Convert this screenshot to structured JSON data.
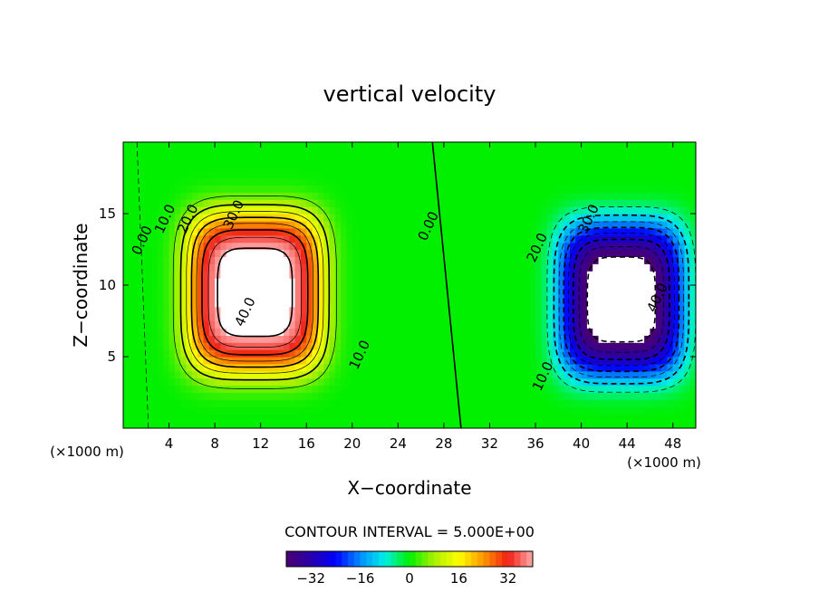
{
  "chart_data": {
    "type": "heatmap",
    "title": "vertical velocity",
    "xlabel": "X−coordinate",
    "ylabel": "Z−coordinate",
    "x_unit_left": "(×1000 m)",
    "x_unit_right": "(×1000 m)",
    "xlim": [
      0,
      50
    ],
    "ylim": [
      0,
      20
    ],
    "xticks": [
      4,
      8,
      12,
      16,
      20,
      24,
      28,
      32,
      36,
      40,
      44,
      48
    ],
    "yticks": [
      5,
      10,
      15
    ],
    "contour_interval_label": "CONTOUR INTERVAL = 5.000E+00",
    "colorbar": {
      "range": [
        -40,
        40
      ],
      "ticks": [
        -32,
        -16,
        0,
        16,
        32
      ],
      "tick_labels": [
        "−32",
        "−16",
        "0",
        "16",
        "32"
      ]
    },
    "contour_labels": [
      {
        "text": "0.00",
        "x": 2,
        "z": 13
      },
      {
        "text": "10.0",
        "x": 4,
        "z": 14.5
      },
      {
        "text": "20.0",
        "x": 6,
        "z": 14.5
      },
      {
        "text": "30.0",
        "x": 10,
        "z": 14.8
      },
      {
        "text": "40.0",
        "x": 11,
        "z": 8
      },
      {
        "text": "10.0",
        "x": 21,
        "z": 5
      },
      {
        "text": "0.00",
        "x": 27,
        "z": 14
      },
      {
        "text": "20.0",
        "x": 36.5,
        "z": 12.5
      },
      {
        "text": "30.0",
        "x": 41,
        "z": 14.5
      },
      {
        "text": "40.0",
        "x": 47,
        "z": 9
      },
      {
        "text": "10.0",
        "x": 37,
        "z": 3.5
      }
    ],
    "fields": {
      "updraft": {
        "center_x": 11.5,
        "center_z": 9.5,
        "sigma_x": 5.5,
        "sigma_z": 5.2,
        "peak": 44,
        "clip_above": 40
      },
      "downdraft": {
        "center_x": 43.5,
        "center_z": 9.0,
        "sigma_x": 5.0,
        "sigma_z": 5.0,
        "peak": -44,
        "clip_below": -40
      }
    },
    "grid": false
  }
}
